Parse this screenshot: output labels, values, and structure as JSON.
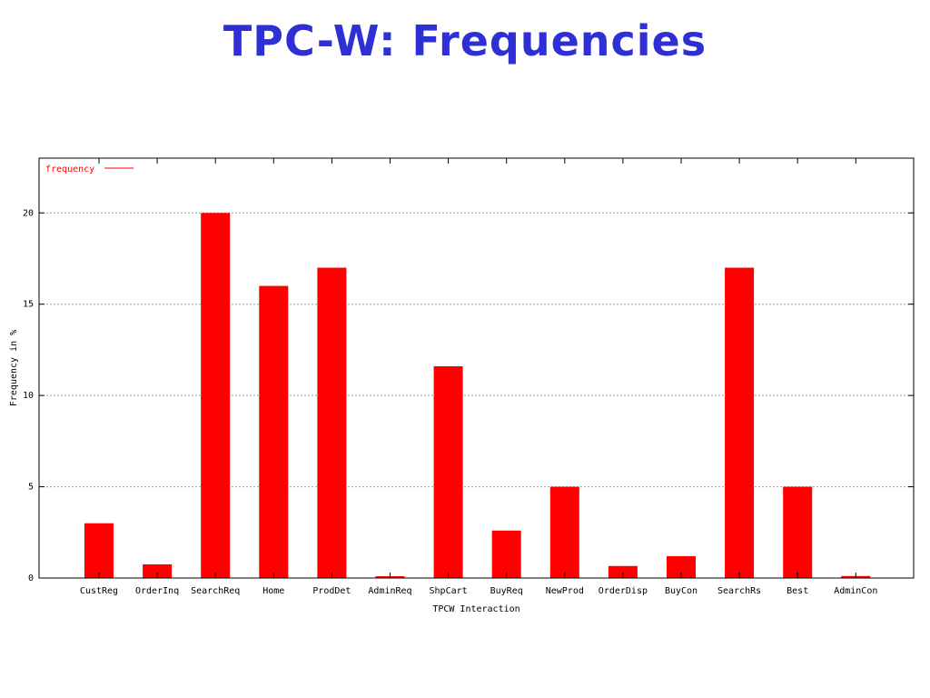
{
  "slide": {
    "title": "TPC-W: Frequencies"
  },
  "colors": {
    "title": "#2f2fd6",
    "bar": "#ff0000",
    "grid": "#a0a0a0"
  },
  "chart_data": {
    "type": "bar",
    "title": "",
    "xlabel": "TPCW Interaction",
    "ylabel": "Frequency in %",
    "categories": [
      "CustReg",
      "OrderInq",
      "SearchReq",
      "Home",
      "ProdDet",
      "AdminReq",
      "ShpCart",
      "BuyReq",
      "NewProd",
      "OrderDisp",
      "BuyCon",
      "SearchRs",
      "Best",
      "AdminCon"
    ],
    "series": [
      {
        "name": "frequency",
        "values": [
          3,
          0.75,
          20,
          16,
          17,
          0.1,
          11.6,
          2.6,
          5,
          0.66,
          1.2,
          17,
          5,
          0.11
        ]
      }
    ],
    "ylim": [
      0,
      23
    ],
    "yticks": [
      0,
      5,
      10,
      15,
      20
    ],
    "grid": true,
    "legend": "top-left"
  }
}
